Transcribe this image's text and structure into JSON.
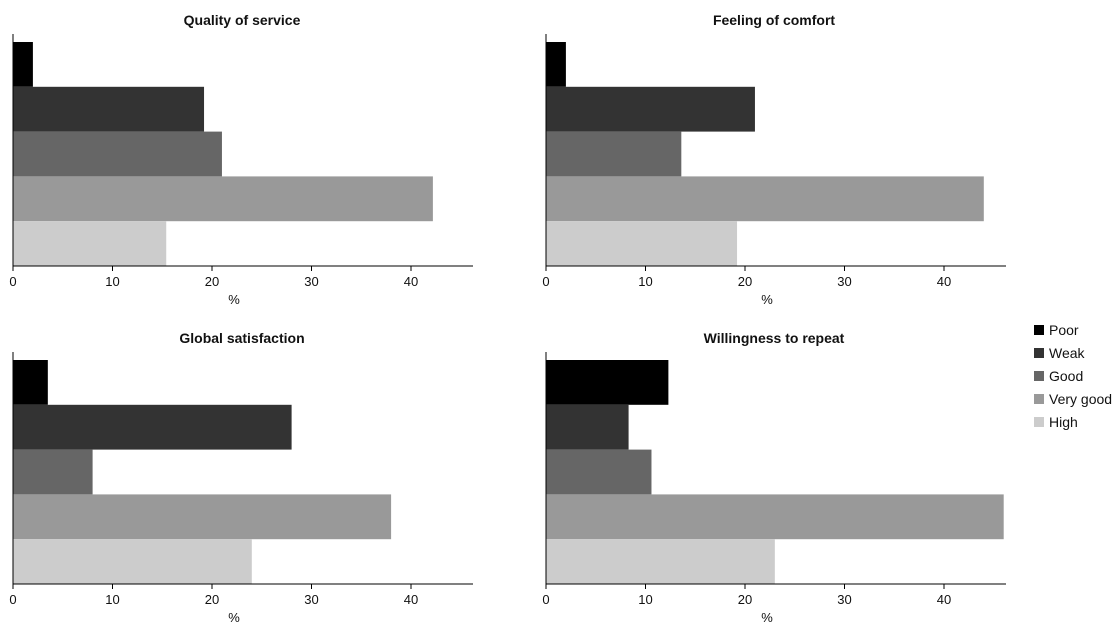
{
  "chart_data": [
    {
      "type": "bar",
      "orientation": "horizontal",
      "title": "Quality of service",
      "categories": [
        "Poor",
        "Weak",
        "Good",
        "Very good",
        "High"
      ],
      "values": [
        2,
        19.2,
        21,
        42.2,
        15.4
      ],
      "xlabel": "%",
      "xticks": [
        0,
        10,
        20,
        30,
        40
      ],
      "xlim": [
        0,
        46
      ]
    },
    {
      "type": "bar",
      "orientation": "horizontal",
      "title": "Feeling of comfort",
      "categories": [
        "Poor",
        "Weak",
        "Good",
        "Very good",
        "High"
      ],
      "values": [
        2,
        21,
        13.6,
        44,
        19.2
      ],
      "xlabel": "%",
      "xticks": [
        0,
        10,
        20,
        30,
        40
      ],
      "xlim": [
        0,
        46
      ]
    },
    {
      "type": "bar",
      "orientation": "horizontal",
      "title": "Global satisfaction",
      "categories": [
        "Poor",
        "Weak",
        "Good",
        "Very good",
        "High"
      ],
      "values": [
        3.5,
        28,
        8,
        38,
        24
      ],
      "xlabel": "%",
      "xticks": [
        0,
        10,
        20,
        30,
        40
      ],
      "xlim": [
        0,
        46
      ]
    },
    {
      "type": "bar",
      "orientation": "horizontal",
      "title": "Willingness to repeat",
      "categories": [
        "Poor",
        "Weak",
        "Good",
        "Very good",
        "High"
      ],
      "values": [
        12.3,
        8.3,
        10.6,
        46,
        23
      ],
      "xlabel": "%",
      "xticks": [
        0,
        10,
        20,
        30,
        40
      ],
      "xlim": [
        0,
        46
      ]
    }
  ],
  "legend": {
    "placement": "right",
    "items": [
      {
        "label": "Poor",
        "color": "#000000"
      },
      {
        "label": "Weak",
        "color": "#333333"
      },
      {
        "label": "Good",
        "color": "#666666"
      },
      {
        "label": "Very good",
        "color": "#999999"
      },
      {
        "label": "High",
        "color": "#cccccc"
      }
    ]
  }
}
